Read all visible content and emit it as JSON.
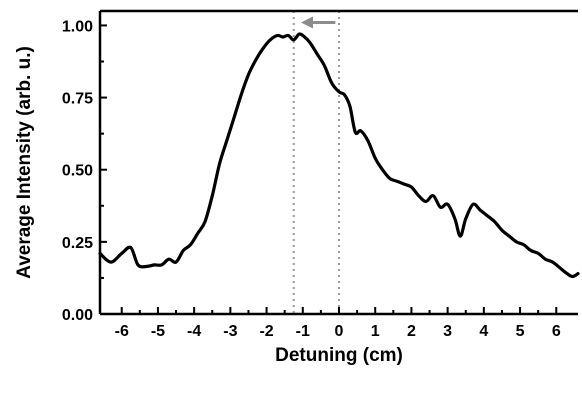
{
  "chart_data": {
    "type": "line",
    "title": "",
    "xlabel": "Detuning (cm)",
    "ylabel": "Average Intensity (arb. u.)",
    "xlim": [
      -6.6,
      6.6
    ],
    "ylim": [
      0.0,
      1.05
    ],
    "x_ticks": [
      "-6",
      "-5",
      "-4",
      "-3",
      "-2",
      "-1",
      "0",
      "1",
      "2",
      "3",
      "4",
      "5",
      "6"
    ],
    "y_ticks": [
      "0.00",
      "0.25",
      "0.50",
      "0.75",
      "1.00"
    ],
    "grid": false,
    "legend": "none",
    "reference_lines": {
      "x": [
        -1.25,
        0.0
      ],
      "style": "dotted",
      "color": "#9a9a9a"
    },
    "annotation": {
      "type": "arrow",
      "direction": "left",
      "from_x": -0.1,
      "to_x": -1.05,
      "y": 1.01,
      "color": "#8c8c8c"
    },
    "series": [
      {
        "color": "#000000",
        "x": [
          -6.6,
          -6.3,
          -6.0,
          -5.75,
          -5.55,
          -5.3,
          -5.1,
          -4.9,
          -4.7,
          -4.5,
          -4.3,
          -4.1,
          -3.9,
          -3.7,
          -3.5,
          -3.3,
          -3.1,
          -2.9,
          -2.7,
          -2.5,
          -2.3,
          -2.1,
          -1.9,
          -1.7,
          -1.55,
          -1.4,
          -1.25,
          -1.1,
          -0.95,
          -0.8,
          -0.6,
          -0.4,
          -0.2,
          0.0,
          0.15,
          0.3,
          0.45,
          0.6,
          0.8,
          1.0,
          1.2,
          1.4,
          1.6,
          1.8,
          2.0,
          2.2,
          2.4,
          2.6,
          2.8,
          3.0,
          3.2,
          3.35,
          3.5,
          3.7,
          3.9,
          4.1,
          4.3,
          4.5,
          4.7,
          4.9,
          5.1,
          5.3,
          5.5,
          5.7,
          5.9,
          6.1,
          6.3,
          6.45,
          6.6
        ],
        "y": [
          0.21,
          0.18,
          0.21,
          0.23,
          0.17,
          0.165,
          0.17,
          0.17,
          0.19,
          0.18,
          0.22,
          0.24,
          0.28,
          0.32,
          0.41,
          0.52,
          0.6,
          0.68,
          0.76,
          0.83,
          0.88,
          0.92,
          0.95,
          0.965,
          0.96,
          0.965,
          0.95,
          0.97,
          0.96,
          0.94,
          0.9,
          0.86,
          0.8,
          0.77,
          0.76,
          0.72,
          0.63,
          0.635,
          0.6,
          0.54,
          0.5,
          0.47,
          0.46,
          0.45,
          0.44,
          0.41,
          0.39,
          0.41,
          0.37,
          0.38,
          0.33,
          0.27,
          0.33,
          0.38,
          0.36,
          0.34,
          0.32,
          0.29,
          0.27,
          0.25,
          0.24,
          0.22,
          0.21,
          0.19,
          0.18,
          0.16,
          0.14,
          0.13,
          0.14
        ]
      }
    ]
  }
}
